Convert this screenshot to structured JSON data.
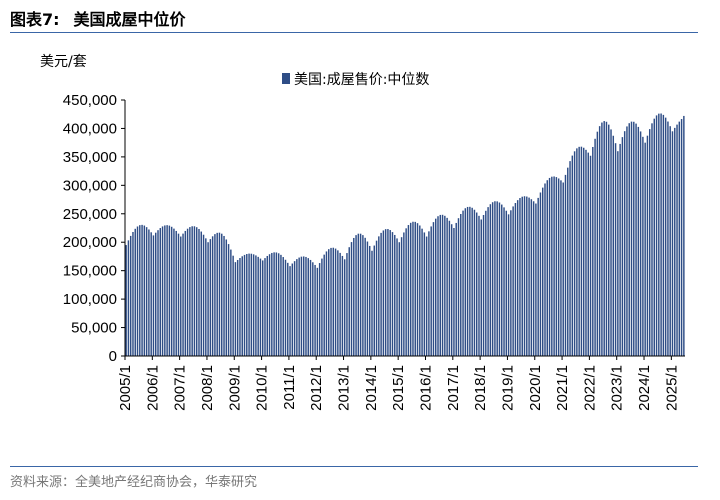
{
  "figure": {
    "label": "图表7:",
    "title": "美国成屋中位价",
    "source": "资料来源：全美地产经纪商协会，华泰研究"
  },
  "colors": {
    "bar": "#2e4d86",
    "rule": "#3a66a7",
    "axis": "#000000"
  },
  "chart_data": {
    "type": "bar",
    "unit_label": "美元/套",
    "series": [
      {
        "name": "美国:成屋售价:中位数"
      }
    ],
    "legend_position": "top-center",
    "grid": false,
    "ylim": [
      0,
      450000
    ],
    "y_ticks": [
      "0",
      "50,000",
      "100,000",
      "150,000",
      "200,000",
      "250,000",
      "300,000",
      "350,000",
      "400,000",
      "450,000"
    ],
    "x_ticks": [
      "2005/1",
      "2006/1",
      "2007/1",
      "2008/1",
      "2009/1",
      "2010/1",
      "2011/1",
      "2012/1",
      "2013/1",
      "2014/1",
      "2015/1",
      "2016/1",
      "2017/1",
      "2018/1",
      "2019/1",
      "2020/1",
      "2021/1",
      "2022/1",
      "2023/1",
      "2024/1",
      "2025/1"
    ],
    "frequency": "monthly",
    "annual_points": [
      {
        "x": "2005/1",
        "y": 195000
      },
      {
        "x": "2006/1",
        "y": 212000
      },
      {
        "x": "2007/1",
        "y": 210000
      },
      {
        "x": "2008/1",
        "y": 200000
      },
      {
        "x": "2009/1",
        "y": 165000
      },
      {
        "x": "2010/1",
        "y": 168000
      },
      {
        "x": "2011/1",
        "y": 158000
      },
      {
        "x": "2012/1",
        "y": 155000
      },
      {
        "x": "2013/1",
        "y": 170000
      },
      {
        "x": "2014/1",
        "y": 185000
      },
      {
        "x": "2015/1",
        "y": 200000
      },
      {
        "x": "2016/1",
        "y": 210000
      },
      {
        "x": "2017/1",
        "y": 225000
      },
      {
        "x": "2018/1",
        "y": 240000
      },
      {
        "x": "2019/1",
        "y": 249000
      },
      {
        "x": "2020/1",
        "y": 268000
      },
      {
        "x": "2021/1",
        "y": 305000
      },
      {
        "x": "2022/1",
        "y": 352000
      },
      {
        "x": "2023/1",
        "y": 360000
      },
      {
        "x": "2024/1",
        "y": 375000
      },
      {
        "x": "2025/1",
        "y": 395000
      }
    ],
    "annual_peaks": [
      230000,
      230000,
      228000,
      215000,
      180000,
      182000,
      175000,
      190000,
      215000,
      223000,
      236000,
      248000,
      262000,
      272000,
      280000,
      313000,
      365000,
      413000,
      412000,
      426000,
      423000
    ],
    "last_point": {
      "x": "2025/6",
      "y": 422000
    }
  }
}
